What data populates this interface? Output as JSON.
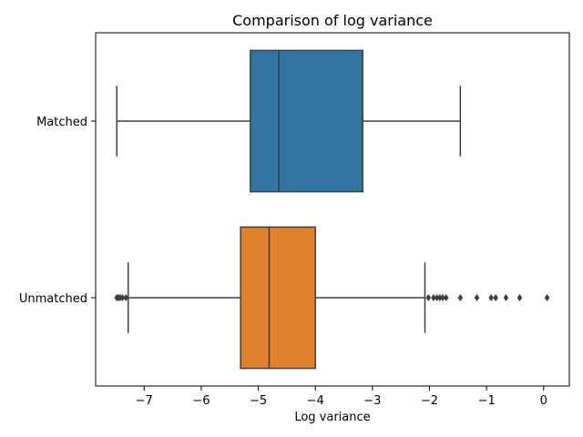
{
  "chart_data": {
    "type": "boxplot",
    "title": "Comparison of log variance",
    "xlabel": "Log variance",
    "ylabel": "",
    "orientation": "horizontal",
    "xlim": [
      -7.85,
      0.45
    ],
    "xticks": [
      -7,
      -6,
      -5,
      -4,
      -3,
      -2,
      -1,
      0
    ],
    "xtick_labels": [
      "−7",
      "−6",
      "−5",
      "−4",
      "−3",
      "−2",
      "−1",
      "0"
    ],
    "grid": false,
    "categories": [
      "Matched",
      "Unmatched"
    ],
    "boxes": [
      {
        "category": "Matched",
        "color": "#3274a1",
        "whisker_low": -7.48,
        "q1": -5.14,
        "median": -4.64,
        "q3": -3.17,
        "whisker_high": -1.46,
        "outliers": []
      },
      {
        "category": "Unmatched",
        "color": "#e1812c",
        "whisker_low": -7.28,
        "q1": -5.31,
        "median": -4.81,
        "q3": -4.0,
        "whisker_high": -2.08,
        "outliers": [
          -7.48,
          -7.45,
          -7.42,
          -7.38,
          -7.32,
          -2.02,
          -1.93,
          -1.87,
          -1.82,
          -1.77,
          -1.71,
          -1.46,
          -1.17,
          -0.92,
          -0.84,
          -0.66,
          -0.42,
          0.06
        ]
      }
    ],
    "line_color": "#3f3f3f"
  }
}
